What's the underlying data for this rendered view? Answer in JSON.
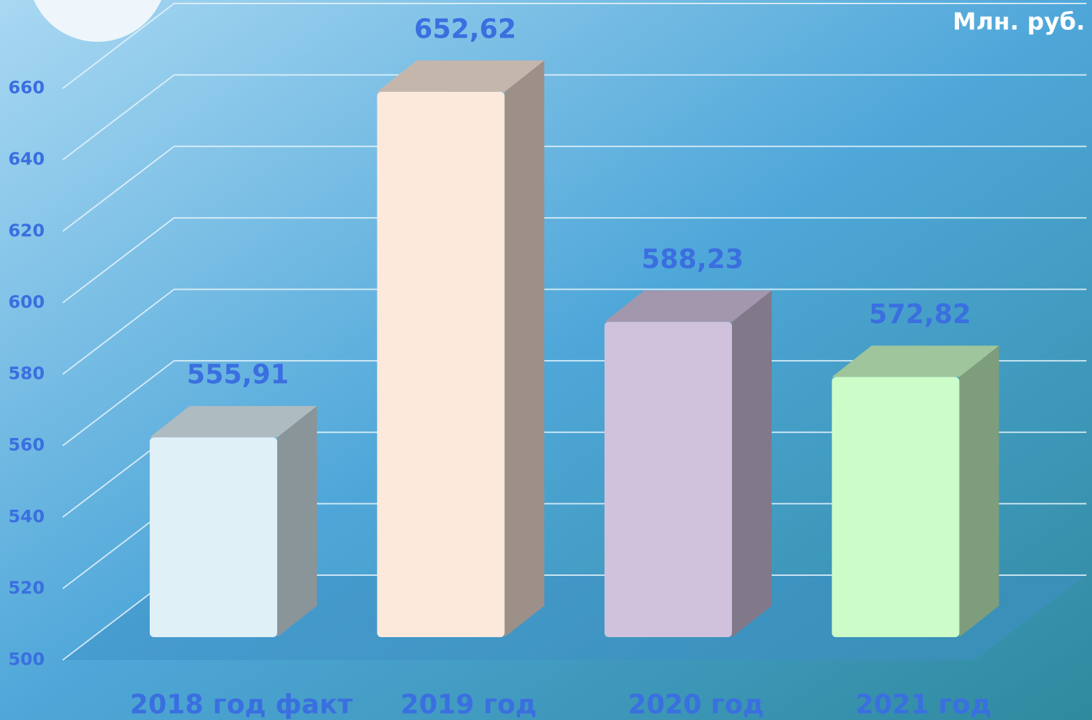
{
  "chart_data": {
    "type": "bar3d",
    "unit_label": "Млн. руб.",
    "categories": [
      "2018 год факт",
      "2019 год",
      "2020 год",
      "2021 год"
    ],
    "values": [
      555.91,
      652.62,
      588.23,
      572.82
    ],
    "value_labels": [
      "555,91",
      "652,62",
      "588,23",
      "572,82"
    ],
    "colors": [
      "#dff0f7",
      "#fde9dc",
      "#d0c1dd",
      "#ccfdc8"
    ],
    "ylim": [
      500,
      660
    ],
    "yticks": [
      500,
      520,
      540,
      560,
      580,
      600,
      620,
      640,
      660
    ],
    "grid": true
  }
}
